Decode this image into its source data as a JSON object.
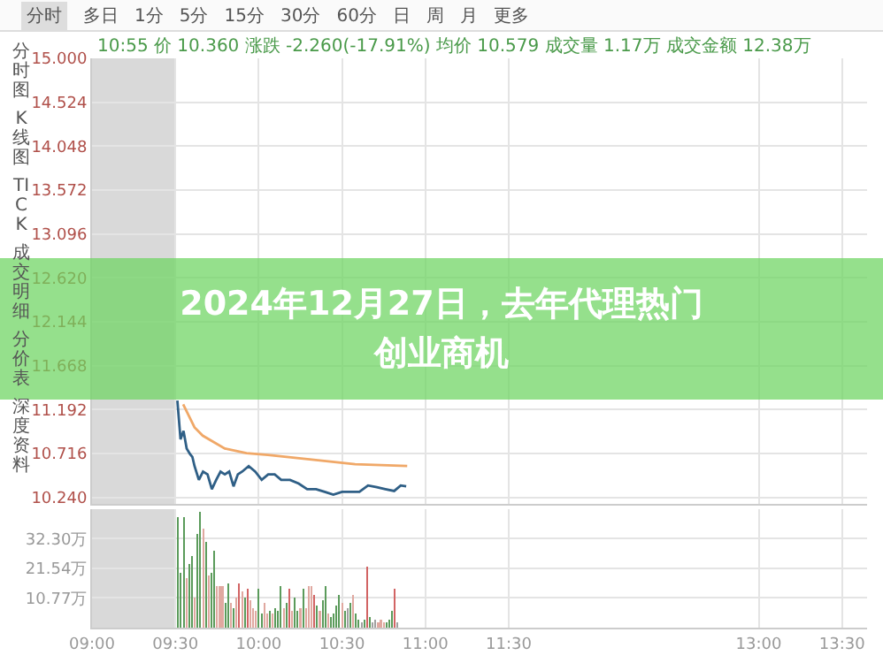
{
  "chart_data": [
    {
      "type": "line",
      "title": "2024年12月27日，去年代理热门创业商机",
      "annotations": [
        "分时 多日 1分 5分 15分 30分 60分 日 周 月 更多",
        "10:55 价 10.360 涨跌 -2.260(-17.91%) 均价 10.579 成交量 1.17万 成交金额 12.38万",
        "分时图",
        "K线图",
        "TICK",
        "成交明细",
        "分价表",
        "深度资料"
      ],
      "xlim": [
        9,
        13.65
      ],
      "xticks": [
        {
          "value": 9,
          "label": null
        },
        {
          "value": 9.5,
          "label": null
        },
        {
          "value": 10,
          "label": null
        },
        {
          "value": 10.5,
          "label": null
        },
        {
          "value": 11,
          "label": null
        },
        {
          "value": 11.5,
          "label": null
        },
        {
          "value": 13,
          "label": null
        },
        {
          "value": 13.5,
          "label": null
        }
      ],
      "ylim": [
        10.17,
        15.0
      ],
      "yticks": [
        {
          "value": 15.0,
          "label": "15.000"
        },
        {
          "value": 14.524,
          "label": "14.524"
        },
        {
          "value": 14.048,
          "label": "14.048"
        },
        {
          "value": 13.572,
          "label": "13.572"
        },
        {
          "value": 13.096,
          "label": "13.096"
        },
        {
          "value": 12.62,
          "label": "12.620"
        },
        {
          "value": 12.144,
          "label": "12.144"
        },
        {
          "value": 11.668,
          "label": "11.668"
        },
        {
          "value": 11.192,
          "label": "11.192"
        },
        {
          "value": 10.716,
          "label": "10.716"
        },
        {
          "value": 10.24,
          "label": "10.240"
        }
      ],
      "tick_labels": "y",
      "grid": true,
      "bands": [
        {
          "axis": "x",
          "from": 9,
          "to": 9.5,
          "color": "#d9d9d9"
        }
      ],
      "series": [
        {
          "color": "#2f5f86",
          "x": [
            9.512,
            9.531,
            9.549,
            9.568,
            9.588,
            9.602,
            9.615,
            9.641,
            9.666,
            9.693,
            9.719,
            9.745,
            9.771,
            9.797,
            9.823,
            9.849,
            9.875,
            9.901,
            9.94,
            9.979,
            10.018,
            10.057,
            10.096,
            10.135,
            10.188,
            10.24,
            10.291,
            10.344,
            10.396,
            10.448,
            10.5,
            10.552,
            10.604,
            10.656,
            10.709,
            10.76,
            10.813,
            10.852,
            10.885
          ],
          "values": [
            11.29,
            10.87,
            10.96,
            10.77,
            10.71,
            10.68,
            10.58,
            10.43,
            10.52,
            10.49,
            10.33,
            10.43,
            10.52,
            10.49,
            10.52,
            10.36,
            10.49,
            10.52,
            10.58,
            10.52,
            10.43,
            10.49,
            10.49,
            10.43,
            10.43,
            10.39,
            10.33,
            10.33,
            10.3,
            10.27,
            10.3,
            10.3,
            10.3,
            10.37,
            10.35,
            10.33,
            10.31,
            10.37,
            10.36
          ]
        },
        {
          "color": "#f0a868",
          "x": [
            9.547,
            9.615,
            9.664,
            9.797,
            9.927,
            10.055,
            10.318,
            10.578,
            10.891
          ],
          "values": [
            11.25,
            11.0,
            10.91,
            10.77,
            10.72,
            10.7,
            10.65,
            10.6,
            10.58
          ]
        }
      ]
    },
    {
      "type": "bar",
      "xlim": [
        9,
        13.65
      ],
      "xticks": [
        {
          "value": 9,
          "label": "09:00"
        },
        {
          "value": 9.5,
          "label": "09:30"
        },
        {
          "value": 10,
          "label": "10:00"
        },
        {
          "value": 10.5,
          "label": "10:30"
        },
        {
          "value": 11,
          "label": "11:00"
        },
        {
          "value": 11.5,
          "label": "11:30"
        },
        {
          "value": 13,
          "label": "13:00"
        },
        {
          "value": 13.5,
          "label": "13:30"
        }
      ],
      "ylim": [
        0,
        43
      ],
      "yticks": [
        {
          "value": 10.77,
          "label": "10.77万"
        },
        {
          "value": 21.54,
          "label": "21.54万"
        },
        {
          "value": 32.3,
          "label": "32.30万"
        }
      ],
      "grid": true,
      "bands": [
        {
          "axis": "x",
          "from": 9,
          "to": 9.5,
          "color": "#d9d9d9"
        }
      ],
      "x": [
        9.517,
        9.533,
        9.55,
        9.567,
        9.583,
        9.6,
        9.617,
        9.633,
        9.65,
        9.667,
        9.683,
        9.7,
        9.717,
        9.733,
        9.75,
        9.767,
        9.783,
        9.8,
        9.817,
        9.833,
        9.85,
        9.867,
        9.883,
        9.9,
        9.917,
        9.933,
        9.95,
        9.967,
        9.983,
        10,
        10.017,
        10.033,
        10.05,
        10.067,
        10.083,
        10.1,
        10.117,
        10.133,
        10.15,
        10.167,
        10.183,
        10.2,
        10.217,
        10.233,
        10.25,
        10.267,
        10.283,
        10.3,
        10.317,
        10.333,
        10.35,
        10.367,
        10.383,
        10.4,
        10.417,
        10.433,
        10.45,
        10.467,
        10.483,
        10.5,
        10.517,
        10.533,
        10.55,
        10.567,
        10.583,
        10.6,
        10.617,
        10.633,
        10.65,
        10.667,
        10.683,
        10.7,
        10.717,
        10.733,
        10.75,
        10.767,
        10.783,
        10.8,
        10.817,
        10.833
      ],
      "values": [
        40,
        20,
        40,
        18,
        23,
        26,
        11,
        34,
        42,
        36,
        31,
        19,
        20,
        28,
        15,
        15,
        15,
        9,
        16,
        9,
        7,
        11,
        16,
        13,
        11,
        14,
        10,
        7,
        6,
        14,
        5,
        9,
        5,
        6,
        5,
        7,
        6,
        15,
        7,
        9,
        14,
        6,
        11,
        6,
        7,
        14,
        7,
        15,
        15,
        12,
        8,
        6,
        10,
        15,
        5,
        4,
        5,
        8,
        12,
        9,
        6,
        7,
        9,
        12,
        5,
        3,
        2,
        3,
        22,
        4,
        2,
        3,
        2,
        3,
        2,
        2,
        3,
        6,
        14,
        2
      ],
      "colors": [
        "#5b9b5b",
        "#5b9b5b",
        "#5b9b5b",
        "#e0a8a0",
        "#5b9b5b",
        "#5b9b5b",
        "#e0a8a0",
        "#5b9b5b",
        "#5b9b5b",
        "#e0a8a0",
        "#5b9b5b",
        "#e0a8a0",
        "#5b9b5b",
        "#5b9b5b",
        "#e0a8a0",
        "#e0a8a0",
        "#e0a8a0",
        "#5b9b5b",
        "#5b9b5b",
        "#e0a8a0",
        "#5b9b5b",
        "#e0a8a0",
        "#d26464",
        "#e0a8a0",
        "#5b9b5b",
        "#d26464",
        "#e0a8a0",
        "#e0a8a0",
        "#e0a8a0",
        "#5b9b5b",
        "#5b9b5b",
        "#e0a8a0",
        "#e0a8a0",
        "#5b9b5b",
        "#e0a8a0",
        "#5b9b5b",
        "#5b9b5b",
        "#5b9b5b",
        "#e0a8a0",
        "#5b9b5b",
        "#d26464",
        "#e0a8a0",
        "#5b9b5b",
        "#5b9b5b",
        "#e0a8a0",
        "#5b9b5b",
        "#e0a8a0",
        "#e0a8a0",
        "#e0a8a0",
        "#d26464",
        "#5b9b5b",
        "#e0a8a0",
        "#5b9b5b",
        "#5b9b5b",
        "#e0a8a0",
        "#5b9b5b",
        "#5b9b5b",
        "#5b9b5b",
        "#5b9b5b",
        "#e0a8a0",
        "#5b9b5b",
        "#a0a0a0",
        "#5b9b5b",
        "#e0a8a0",
        "#5b9b5b",
        "#5b9b5b",
        "#a0a0a0",
        "#5b9b5b",
        "#d26464",
        "#5b9b5b",
        "#a0a0a0",
        "#a0a0a0",
        "#e0a8a0",
        "#e0a8a0",
        "#e0a8a0",
        "#5b9b5b",
        "#5b9b5b",
        "#5b9b5b",
        "#d26464",
        "#a0a0a0"
      ]
    }
  ]
}
